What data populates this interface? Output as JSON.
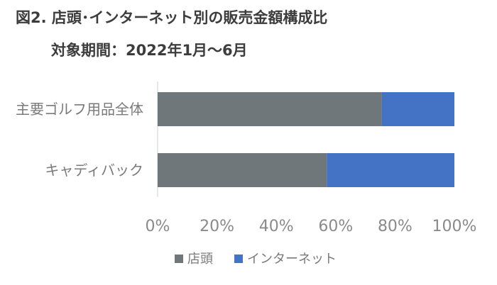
{
  "figure": {
    "title": "図2. 店頭･インターネット別の販売金額構成比",
    "period": "対象期間：2022年1月～6月"
  },
  "chart_data": {
    "type": "bar",
    "orientation": "horizontal",
    "stacked": true,
    "categories": [
      "主要ゴルフ用品全体",
      "キャディバック"
    ],
    "series": [
      {
        "name": "店頭",
        "color": "#6f777b",
        "values": [
          0.755,
          0.57
        ]
      },
      {
        "name": "インターネット",
        "color": "#4472c4",
        "values": [
          0.245,
          0.43
        ]
      }
    ],
    "xlim": [
      0,
      1
    ],
    "xticks": [
      0,
      0.2,
      0.4,
      0.6,
      0.8,
      1.0
    ],
    "xtick_labels": [
      "0%",
      "20%",
      "40%",
      "60%",
      "80%",
      "100%"
    ],
    "grid": false,
    "legend_position": "bottom"
  }
}
